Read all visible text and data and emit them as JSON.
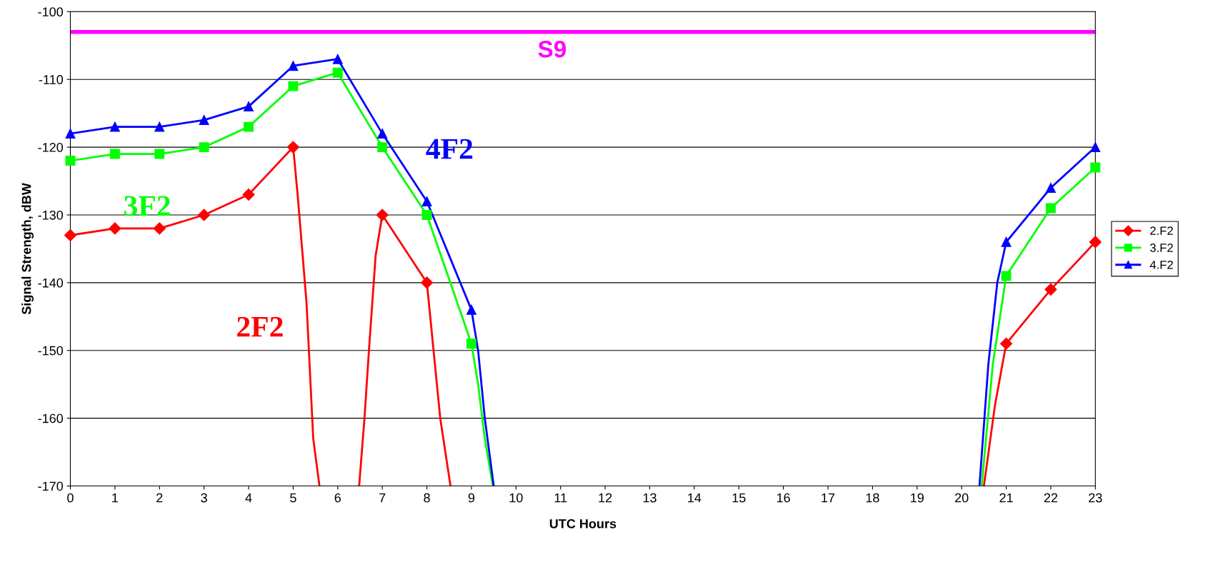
{
  "chart_data": {
    "type": "line",
    "xlabel": "UTC Hours",
    "ylabel": "Signal Strength, dBW",
    "x": [
      0,
      1,
      2,
      3,
      4,
      5,
      6,
      7,
      8,
      9,
      10,
      11,
      12,
      13,
      14,
      15,
      16,
      17,
      18,
      19,
      20,
      21,
      22,
      23
    ],
    "xlim": [
      0,
      23
    ],
    "xticks": [
      0,
      1,
      2,
      3,
      4,
      5,
      6,
      7,
      8,
      9,
      10,
      11,
      12,
      13,
      14,
      15,
      16,
      17,
      18,
      19,
      20,
      21,
      22,
      23
    ],
    "ylim": [
      -170,
      -100
    ],
    "yticks": [
      -170,
      -160,
      -150,
      -140,
      -130,
      -120,
      -110,
      -100
    ],
    "grid": "y",
    "legend": "right",
    "line_style": "solid",
    "series": [
      {
        "name": "2.F2",
        "color": "#ff0000",
        "marker": "diamond",
        "values": [
          -133,
          -132,
          -132,
          -130,
          -127,
          -120,
          null,
          -130,
          -140,
          null,
          null,
          null,
          null,
          null,
          null,
          null,
          null,
          null,
          null,
          null,
          null,
          -149,
          -141,
          -134
        ]
      },
      {
        "name": "3.F2",
        "color": "#00ff00",
        "marker": "square",
        "values": [
          -122,
          -121,
          -121,
          -120,
          -117,
          -111,
          -109,
          -120,
          -130,
          -149,
          null,
          null,
          null,
          null,
          null,
          null,
          null,
          null,
          null,
          null,
          null,
          -139,
          -129,
          -123
        ]
      },
      {
        "name": "4.F2",
        "color": "#0000ff",
        "marker": "triangle",
        "values": [
          -118,
          -117,
          -117,
          -116,
          -114,
          -108,
          -107,
          -118,
          -128,
          -144,
          null,
          null,
          null,
          null,
          null,
          null,
          null,
          null,
          null,
          null,
          null,
          -134,
          -126,
          -120
        ]
      },
      {
        "color": "#ff0000",
        "marker": "none",
        "x": [
          5,
          5.1,
          5.2,
          5.3,
          5.45,
          5.59
        ],
        "values": [
          -120,
          -127,
          -135,
          -143,
          -163,
          -170
        ]
      },
      {
        "color": "#ff0000",
        "marker": "none",
        "x": [
          6.48,
          6.6,
          6.7,
          6.85,
          7
        ],
        "values": [
          -170,
          -160,
          -150,
          -136,
          -130
        ]
      },
      {
        "color": "#ff0000",
        "marker": "none",
        "x": [
          8,
          8.15,
          8.3,
          8.53
        ],
        "values": [
          -140,
          -150,
          -160,
          -170
        ]
      },
      {
        "color": "#00ff00",
        "marker": "none",
        "x": [
          9,
          9.15,
          9.3,
          9.48
        ],
        "values": [
          -149,
          -155,
          -163,
          -170
        ]
      },
      {
        "color": "#0000ff",
        "marker": "none",
        "x": [
          9,
          9.15,
          9.3,
          9.5
        ],
        "values": [
          -144,
          -150,
          -160,
          -170
        ]
      },
      {
        "color": "#0000ff",
        "marker": "none",
        "x": [
          20.4,
          20.6,
          20.8,
          21
        ],
        "values": [
          -170,
          -152,
          -140,
          -134
        ]
      },
      {
        "color": "#00ff00",
        "marker": "none",
        "x": [
          20.45,
          20.7,
          21
        ],
        "values": [
          -170,
          -152,
          -139
        ]
      },
      {
        "color": "#ff0000",
        "marker": "none",
        "x": [
          20.5,
          20.75,
          21
        ],
        "values": [
          -170,
          -158,
          -149
        ]
      }
    ],
    "ref_lines": [
      {
        "axis": "y",
        "value": -103,
        "label": "S9",
        "color": "#ff00ff"
      }
    ],
    "annotations": [
      "2F2",
      "3F2",
      "4F2"
    ]
  }
}
